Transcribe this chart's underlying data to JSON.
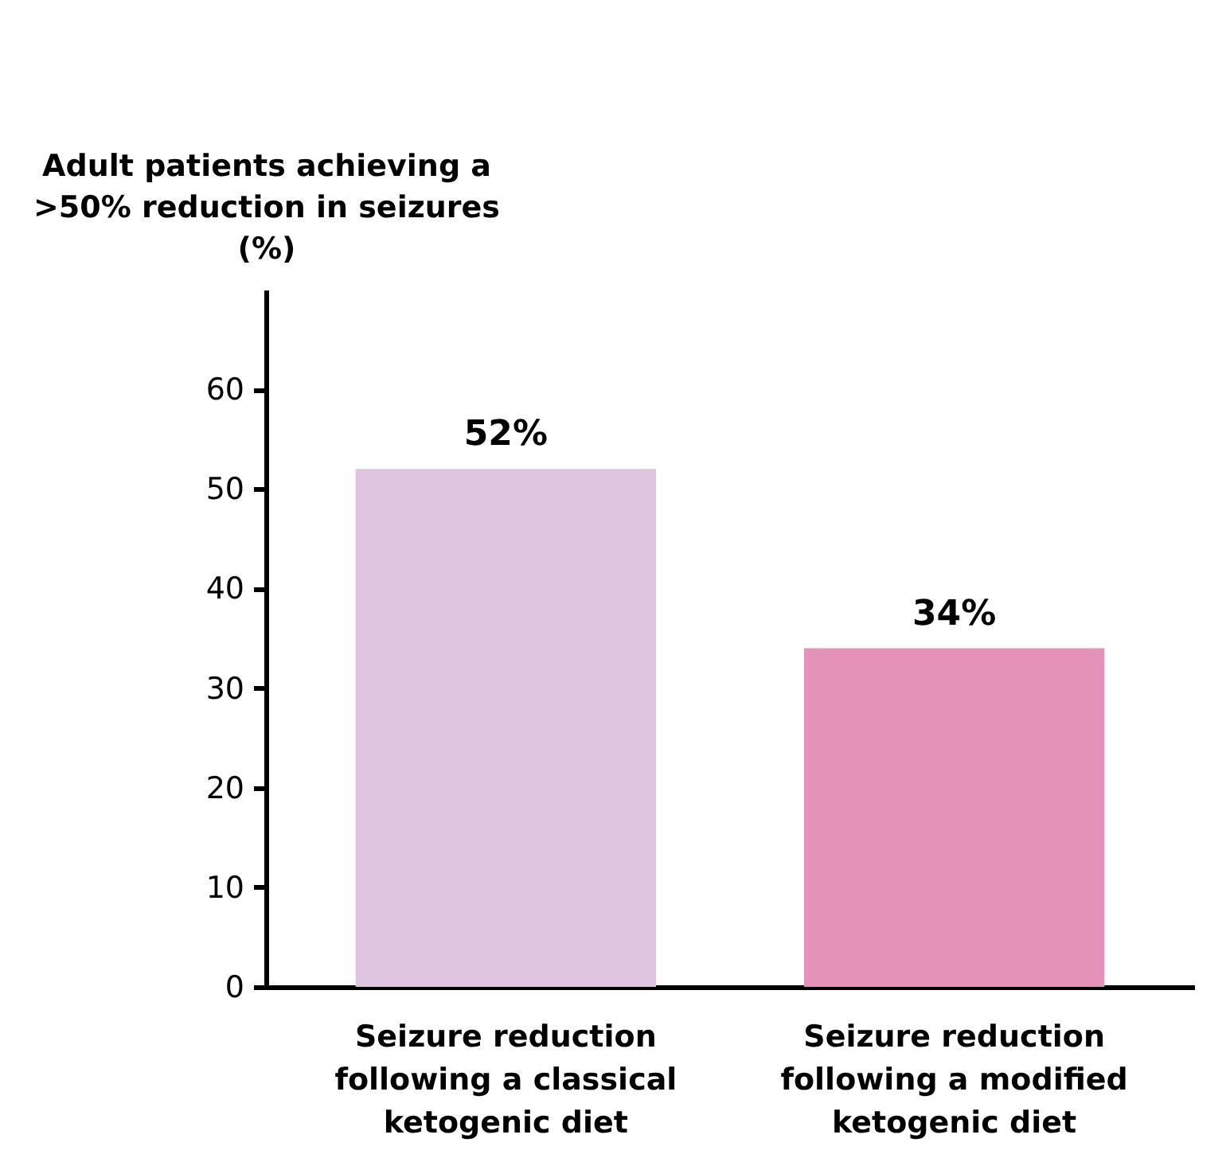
{
  "chart_data": {
    "type": "bar",
    "ylabel": "Adult patients achieving a >50% reduction in seizures (%)",
    "categories": [
      "Seizure reduction following a classical ketogenic diet",
      "Seizure reduction following a modified ketogenic diet"
    ],
    "values": [
      52,
      34
    ],
    "colors": [
      "#dfc5df",
      "#e592b8"
    ],
    "value_labels": [
      "52%",
      "34%"
    ],
    "ylim": [
      0,
      70
    ],
    "yticks": [
      0,
      10,
      20,
      30,
      40,
      50,
      60
    ],
    "grid": false
  }
}
